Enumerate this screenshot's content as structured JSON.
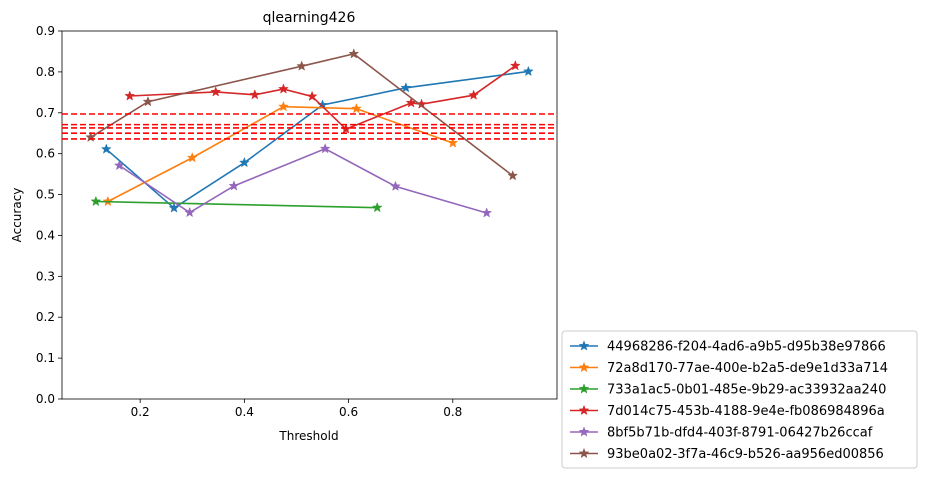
{
  "chart_data": {
    "type": "line",
    "title": "qlearning426",
    "xlabel": "Threshold",
    "ylabel": "Accuracy",
    "xlim": [
      0.05,
      1.0
    ],
    "ylim": [
      0.0,
      0.9
    ],
    "xticks": [
      0.2,
      0.4,
      0.6,
      0.8
    ],
    "xtick_labels": [
      "0.2",
      "0.4",
      "0.6",
      "0.8"
    ],
    "yticks": [
      0.0,
      0.1,
      0.2,
      0.3,
      0.4,
      0.5,
      0.6,
      0.7,
      0.8,
      0.9
    ],
    "ytick_labels": [
      "0.0",
      "0.1",
      "0.2",
      "0.3",
      "0.4",
      "0.5",
      "0.6",
      "0.7",
      "0.8",
      "0.9"
    ],
    "grid": false,
    "legend_position": "outside-bottom-right",
    "marker": "star",
    "reference_lines": {
      "orientation": "horizontal",
      "style": "dashed",
      "color": "#ff0000",
      "y_values": [
        0.697,
        0.671,
        0.663,
        0.65,
        0.636
      ]
    },
    "series": [
      {
        "name": "44968286-f204-4ad6-a9b5-d95b38e97866",
        "color": "#1f77b4",
        "x": [
          0.135,
          0.265,
          0.4,
          0.55,
          0.71,
          0.945
        ],
        "y": [
          0.611,
          0.467,
          0.578,
          0.719,
          0.761,
          0.801
        ]
      },
      {
        "name": "72a8d170-77ae-400e-b2a5-de9e1d33a714",
        "color": "#ff7f0e",
        "x": [
          0.138,
          0.3,
          0.475,
          0.615,
          0.8
        ],
        "y": [
          0.483,
          0.59,
          0.715,
          0.71,
          0.626
        ]
      },
      {
        "name": "733a1ac5-0b01-485e-9b29-ac33932aa240",
        "color": "#2ca02c",
        "x": [
          0.115,
          0.655
        ],
        "y": [
          0.483,
          0.468
        ]
      },
      {
        "name": "7d014c75-453b-4188-9e4e-fb086984896a",
        "color": "#d62728",
        "x": [
          0.18,
          0.345,
          0.42,
          0.475,
          0.53,
          0.595,
          0.72,
          0.74,
          0.84,
          0.92
        ],
        "y": [
          0.741,
          0.751,
          0.744,
          0.758,
          0.74,
          0.66,
          0.724,
          0.721,
          0.743,
          0.815
        ]
      },
      {
        "name": "8bf5b71b-dfd4-403f-8791-06427b26ccaf",
        "color": "#9467bd",
        "x": [
          0.16,
          0.295,
          0.38,
          0.555,
          0.69,
          0.865
        ],
        "y": [
          0.571,
          0.456,
          0.521,
          0.612,
          0.52,
          0.455
        ]
      },
      {
        "name": "93be0a02-3f7a-46c9-b526-aa956ed00856",
        "color": "#8c564b",
        "x": [
          0.105,
          0.215,
          0.51,
          0.61,
          0.915
        ],
        "y": [
          0.64,
          0.727,
          0.814,
          0.844,
          0.546
        ]
      }
    ]
  }
}
